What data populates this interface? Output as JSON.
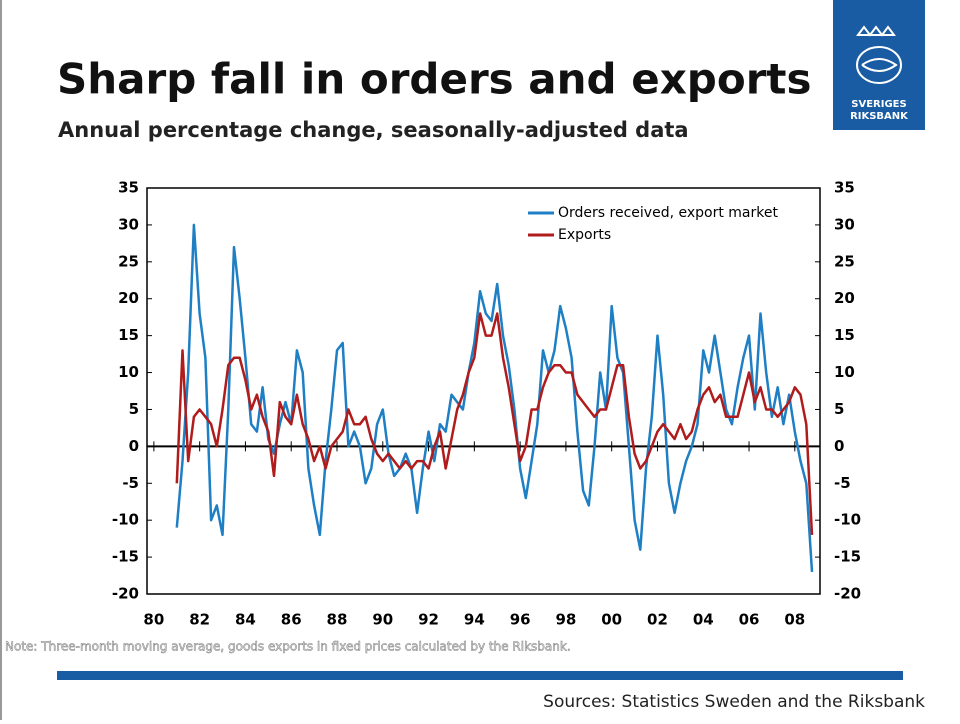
{
  "chart_data": {
    "type": "line",
    "title": "Sharp fall in orders and exports",
    "subtitle": "Annual percentage change, seasonally-adjusted data",
    "note": "Note: Three-month moving average, goods exports in fixed prices calculated by the Riksbank.",
    "source": "Sources: Statistics Sweden and the Riksbank",
    "logo_text": [
      "SVERIGES",
      "RIKSBANK"
    ],
    "legend": "upper right",
    "x": [
      1981.0,
      1981.25,
      1981.5,
      1981.75,
      1982.0,
      1982.25,
      1982.5,
      1982.75,
      1983.0,
      1983.25,
      1983.5,
      1983.75,
      1984.0,
      1984.25,
      1984.5,
      1984.75,
      1985.0,
      1985.25,
      1985.5,
      1985.75,
      1986.0,
      1986.25,
      1986.5,
      1986.75,
      1987.0,
      1987.25,
      1987.5,
      1987.75,
      1988.0,
      1988.25,
      1988.5,
      1988.75,
      1989.0,
      1989.25,
      1989.5,
      1989.75,
      1990.0,
      1990.25,
      1990.5,
      1990.75,
      1991.0,
      1991.25,
      1991.5,
      1991.75,
      1992.0,
      1992.25,
      1992.5,
      1992.75,
      1993.0,
      1993.25,
      1993.5,
      1993.75,
      1994.0,
      1994.25,
      1994.5,
      1994.75,
      1995.0,
      1995.25,
      1995.5,
      1995.75,
      1996.0,
      1996.25,
      1996.5,
      1996.75,
      1997.0,
      1997.25,
      1997.5,
      1997.75,
      1998.0,
      1998.25,
      1998.5,
      1998.75,
      1999.0,
      1999.25,
      1999.5,
      1999.75,
      2000.0,
      2000.25,
      2000.5,
      2000.75,
      2001.0,
      2001.25,
      2001.5,
      2001.75,
      2002.0,
      2002.25,
      2002.5,
      2002.75,
      2003.0,
      2003.25,
      2003.5,
      2003.75,
      2004.0,
      2004.25,
      2004.5,
      2004.75,
      2005.0,
      2005.25,
      2005.5,
      2005.75,
      2006.0,
      2006.25,
      2006.5,
      2006.75,
      2007.0,
      2007.25,
      2007.5,
      2007.75,
      2008.0,
      2008.25,
      2008.5,
      2008.75
    ],
    "series": [
      {
        "name": "Orders received, export market",
        "color": "#1f7fc4",
        "values": [
          -11,
          -2,
          10,
          30,
          18,
          12,
          -10,
          -8,
          -12,
          5,
          27,
          20,
          12,
          3,
          2,
          8,
          1,
          -1,
          3,
          6,
          3,
          13,
          10,
          -3,
          -8,
          -12,
          -2,
          5,
          13,
          14,
          0,
          2,
          0,
          -5,
          -3,
          3,
          5,
          -1,
          -4,
          -3,
          -1,
          -3,
          -9,
          -3,
          2,
          -2,
          3,
          2,
          7,
          6,
          5,
          10,
          14,
          21,
          18,
          17,
          22,
          15,
          11,
          5,
          -3,
          -7,
          -2,
          3,
          13,
          10,
          13,
          19,
          16,
          12,
          2,
          -6,
          -8,
          0,
          10,
          5,
          19,
          12,
          10,
          0,
          -10,
          -14,
          -3,
          4,
          15,
          7,
          -5,
          -9,
          -5,
          -2,
          0,
          3,
          13,
          10,
          15,
          10,
          5,
          3,
          8,
          12,
          15,
          5,
          18,
          10,
          4,
          8,
          3,
          7,
          2,
          -2,
          -5,
          -17
        ]
      },
      {
        "name": "Exports",
        "color": "#b01c1c",
        "values": [
          -5,
          13,
          -2,
          4,
          5,
          4,
          3,
          0,
          5,
          11,
          12,
          12,
          9,
          5,
          7,
          4,
          2,
          -4,
          6,
          4,
          3,
          7,
          3,
          1,
          -2,
          0,
          -3,
          0,
          1,
          2,
          5,
          3,
          3,
          4,
          1,
          -1,
          -2,
          -1,
          -2,
          -3,
          -2,
          -3,
          -2,
          -2,
          -3,
          0,
          2,
          -3,
          1,
          5,
          7,
          10,
          12,
          18,
          15,
          15,
          18,
          12,
          8,
          3,
          -2,
          0,
          5,
          5,
          8,
          10,
          11,
          11,
          10,
          10,
          7,
          6,
          5,
          4,
          5,
          5,
          8,
          11,
          11,
          4,
          -1,
          -3,
          -2,
          0,
          2,
          3,
          2,
          1,
          3,
          1,
          2,
          5,
          7,
          8,
          6,
          7,
          4,
          4,
          4,
          7,
          10,
          6,
          8,
          5,
          5,
          4,
          5,
          6,
          8,
          7,
          3,
          -12
        ]
      }
    ],
    "xlim": [
      1979.7,
      2009.1
    ],
    "xticks": [
      {
        "value": 1980,
        "label": "80"
      },
      {
        "value": 1982,
        "label": "82"
      },
      {
        "value": 1984,
        "label": "84"
      },
      {
        "value": 1986,
        "label": "86"
      },
      {
        "value": 1988,
        "label": "88"
      },
      {
        "value": 1990,
        "label": "90"
      },
      {
        "value": 1992,
        "label": "92"
      },
      {
        "value": 1994,
        "label": "94"
      },
      {
        "value": 1996,
        "label": "96"
      },
      {
        "value": 1998,
        "label": "98"
      },
      {
        "value": 2000,
        "label": "00"
      },
      {
        "value": 2002,
        "label": "02"
      },
      {
        "value": 2004,
        "label": "04"
      },
      {
        "value": 2006,
        "label": "06"
      },
      {
        "value": 2008,
        "label": "08"
      }
    ],
    "ylim": [
      -20,
      35
    ],
    "yticks": [
      -20,
      -15,
      -10,
      -5,
      0,
      5,
      10,
      15,
      20,
      25,
      30,
      35
    ],
    "y2lim": [
      -20,
      35
    ],
    "y2ticks": [
      -20,
      -15,
      -10,
      -5,
      0,
      5,
      10,
      15,
      20,
      25,
      30,
      35
    ]
  }
}
